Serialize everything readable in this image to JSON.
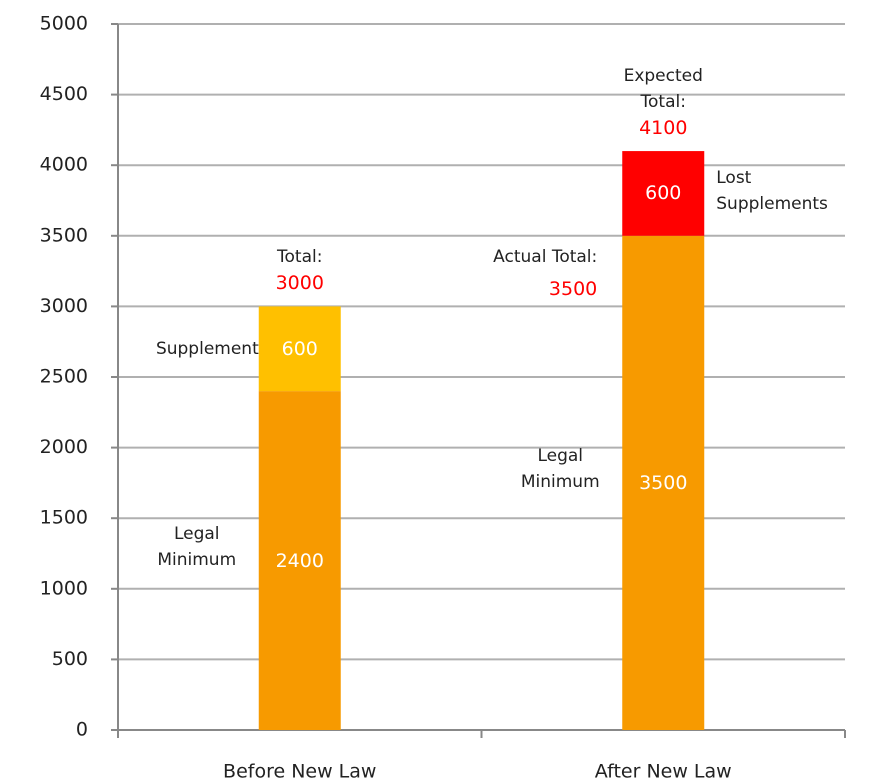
{
  "chart_data": {
    "type": "stacked_bar",
    "categories": [
      "Before New Law",
      "After New Law"
    ],
    "series": [
      {
        "name": "Legal Minimum",
        "color": "#f79a00",
        "values": [
          2400,
          3500
        ]
      },
      {
        "name": "Supplement",
        "color": "#ffc000",
        "values": [
          600,
          null
        ]
      },
      {
        "name": "Lost Supplements",
        "color": "#ff0000",
        "values": [
          null,
          600
        ]
      }
    ],
    "annotations": [
      {
        "text": "Total:",
        "value": 3000
      },
      {
        "text": "Expected Total:",
        "value": 4100
      },
      {
        "text": "Actual Total:",
        "value": 3500
      }
    ],
    "ylim": [
      0,
      5000
    ],
    "yticks": [
      0,
      500,
      1000,
      1500,
      2000,
      2500,
      3000,
      3500,
      4000,
      4500,
      5000
    ],
    "grid": true
  }
}
